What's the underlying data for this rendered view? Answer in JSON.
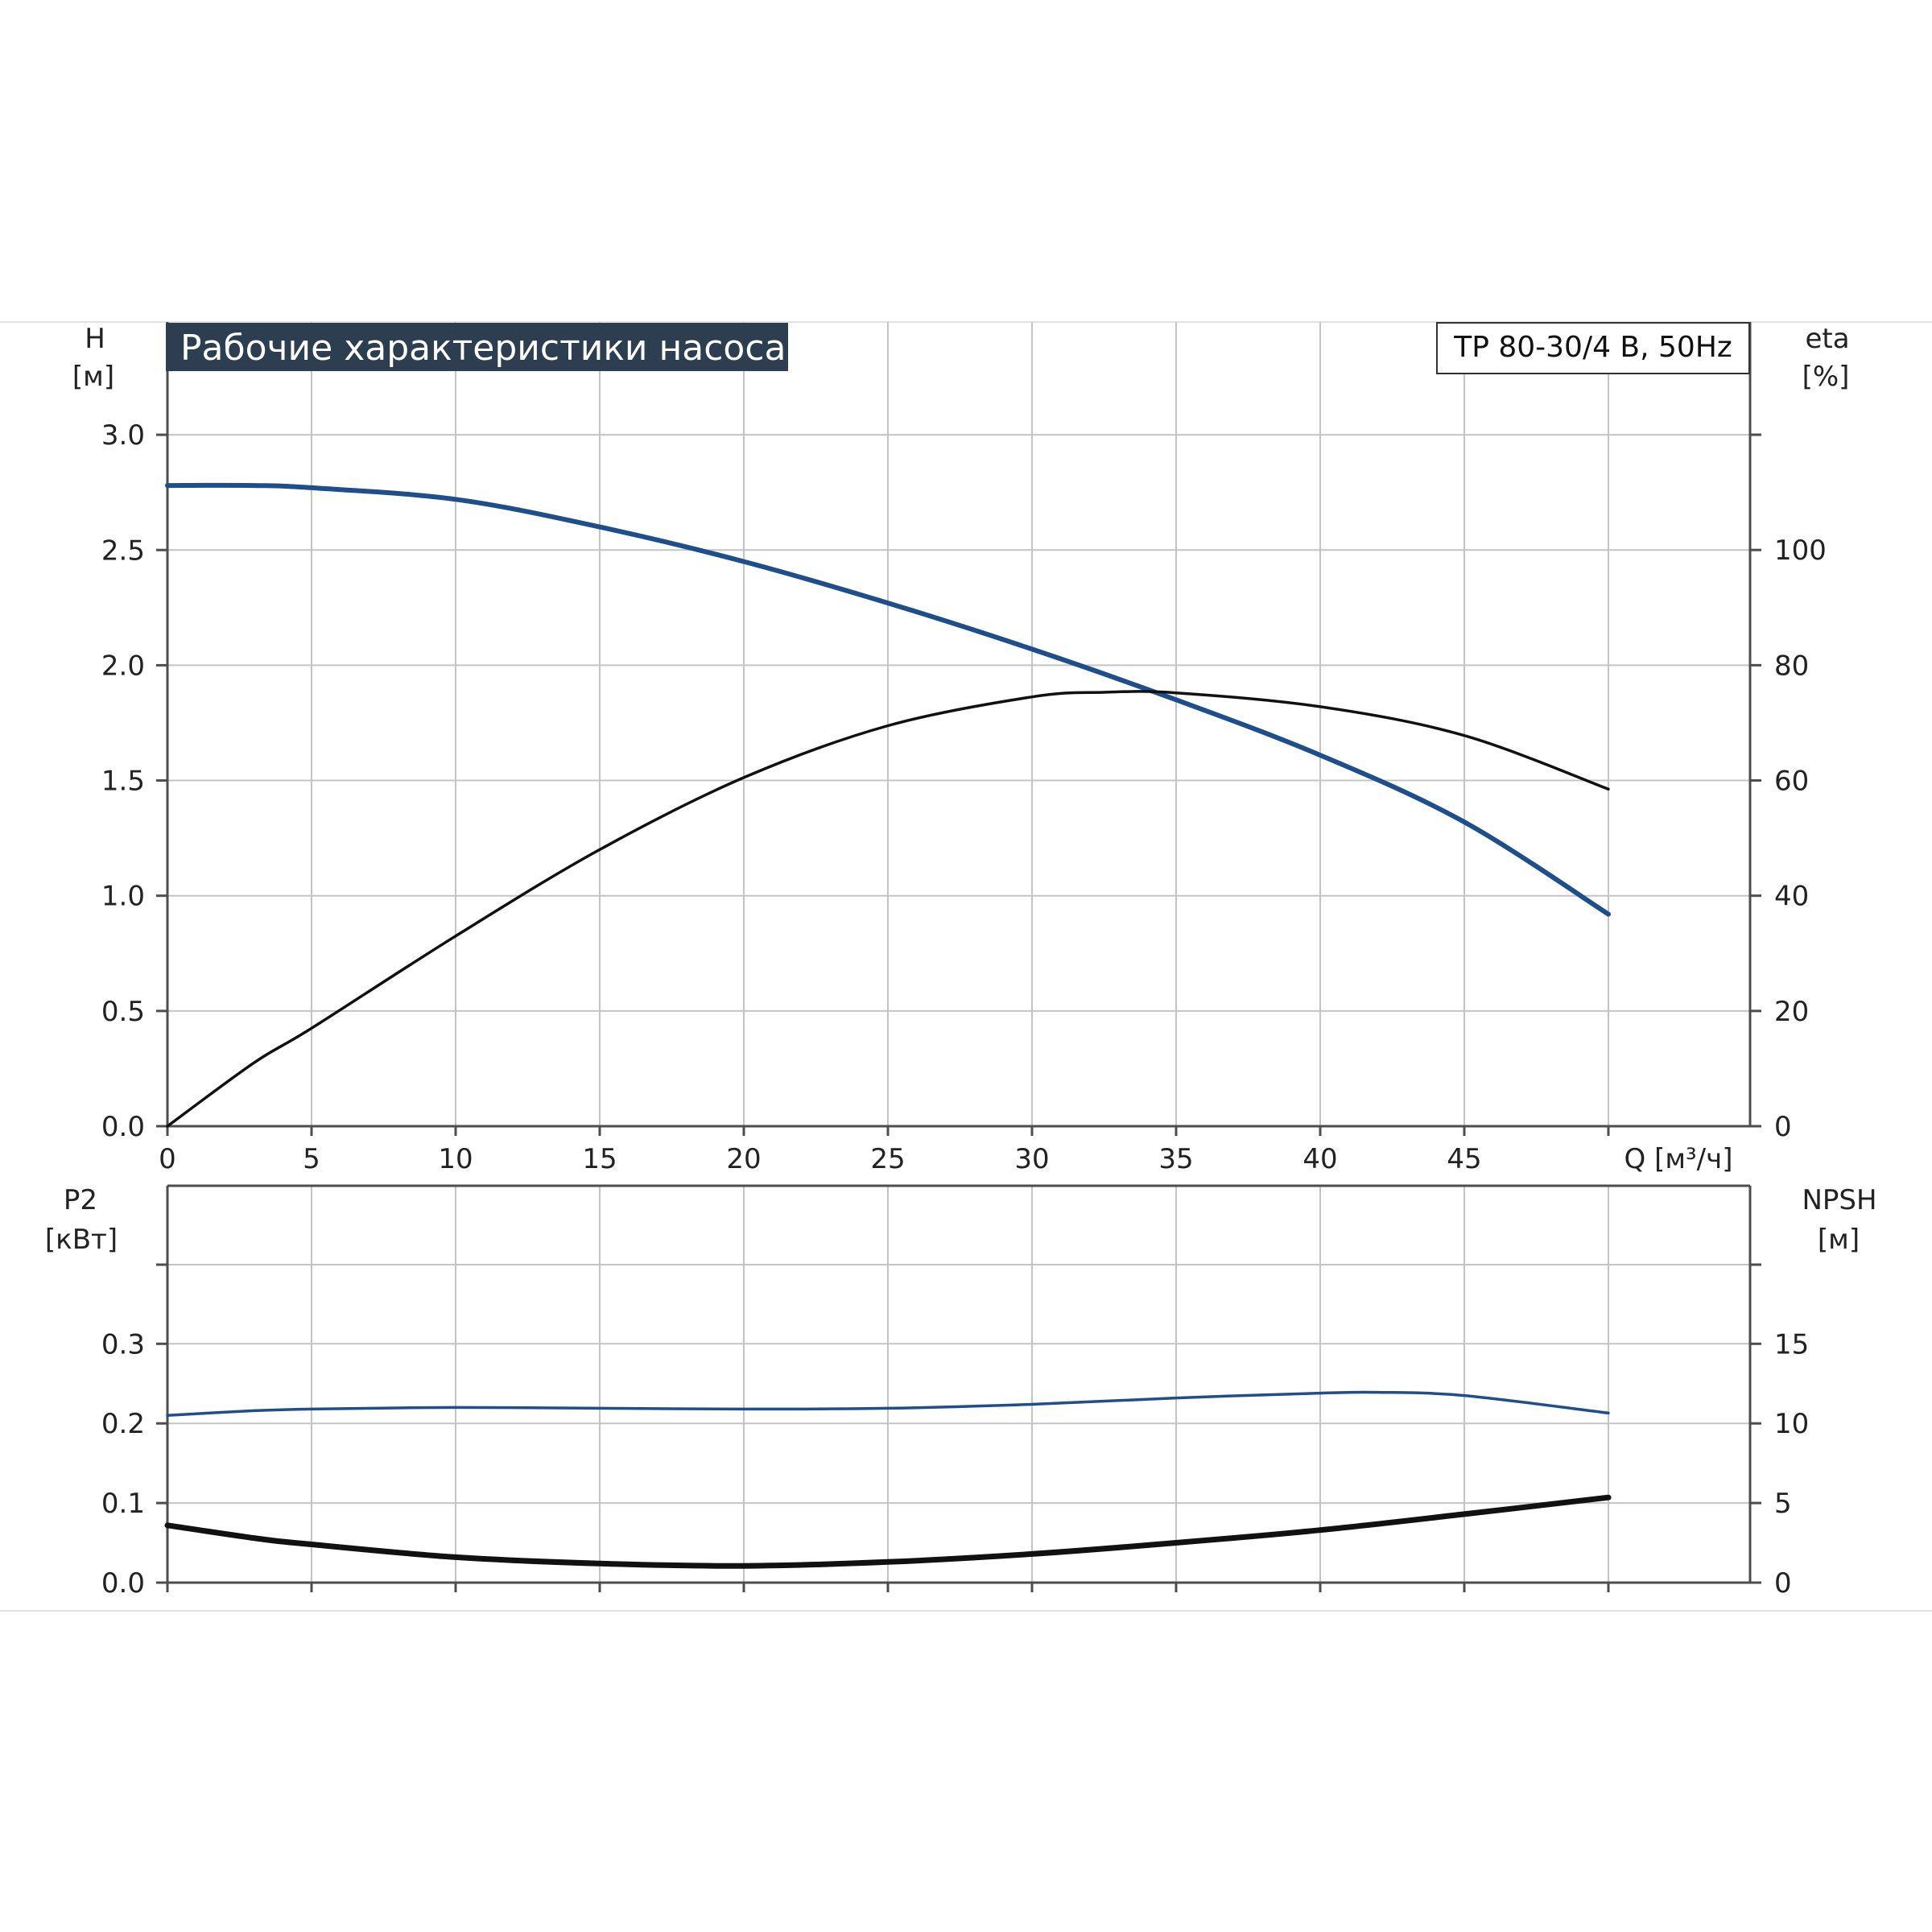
{
  "chart_data": [
    {
      "type": "line",
      "title": "Рабочие характеристики насоса",
      "model_label": "TP 80-30/4 B, 50Hz",
      "xlabel": "Q [м³/ч]",
      "xlim": [
        0,
        50
      ],
      "xticks": [
        "0",
        "5",
        "10",
        "15",
        "20",
        "25",
        "30",
        "35",
        "40",
        "45"
      ],
      "ylabel_left": [
        "H",
        "[м]"
      ],
      "ylim_left": [
        0,
        3.0
      ],
      "yticks_left": [
        "0.0",
        "0.5",
        "1.0",
        "1.5",
        "2.0",
        "2.5",
        "3.0"
      ],
      "ylabel_right": [
        "eta",
        "[%]"
      ],
      "ylim_right": [
        0,
        120
      ],
      "yticks_right": [
        "0",
        "20",
        "40",
        "60",
        "80",
        "100"
      ],
      "grid": true,
      "series": [
        {
          "axis": "left",
          "color": "#1f4e8c",
          "x": [
            0,
            3,
            5,
            10,
            15,
            20,
            25,
            30,
            35,
            40,
            45,
            50
          ],
          "values": [
            2.78,
            2.78,
            2.77,
            2.72,
            2.6,
            2.45,
            2.27,
            2.07,
            1.85,
            1.61,
            1.32,
            0.92
          ]
        },
        {
          "axis": "right",
          "color": "#111111",
          "x": [
            0,
            3,
            5,
            10,
            15,
            20,
            25,
            30,
            32.5,
            35,
            40,
            45,
            50
          ],
          "values": [
            0,
            11,
            17,
            33,
            48,
            60.5,
            69.5,
            74.5,
            75.3,
            75.2,
            72.8,
            67.8,
            58.5
          ]
        }
      ]
    },
    {
      "type": "line",
      "xlim": [
        0,
        50
      ],
      "ylabel_left": [
        "P2",
        "[кВт]"
      ],
      "ylim_left": [
        0,
        0.4
      ],
      "yticks_left": [
        "0.0",
        "0.1",
        "0.2",
        "0.3"
      ],
      "ylabel_right": [
        "NPSH",
        "[м]"
      ],
      "ylim_right": [
        0,
        20
      ],
      "yticks_right": [
        "0",
        "5",
        "10",
        "15"
      ],
      "grid": true,
      "series": [
        {
          "axis": "left",
          "color": "#1f4e8c",
          "x": [
            0,
            3,
            5,
            10,
            15,
            20,
            25,
            30,
            35,
            40,
            42,
            45,
            50
          ],
          "values": [
            0.21,
            0.216,
            0.218,
            0.22,
            0.219,
            0.218,
            0.219,
            0.224,
            0.232,
            0.238,
            0.239,
            0.235,
            0.213
          ]
        },
        {
          "axis": "right",
          "color": "#111111",
          "x": [
            0,
            3,
            5,
            10,
            15,
            20,
            25,
            30,
            35,
            40,
            45,
            50
          ],
          "values": [
            3.6,
            2.8,
            2.4,
            1.6,
            1.2,
            1.05,
            1.3,
            1.8,
            2.5,
            3.3,
            4.3,
            5.35
          ]
        }
      ]
    }
  ]
}
